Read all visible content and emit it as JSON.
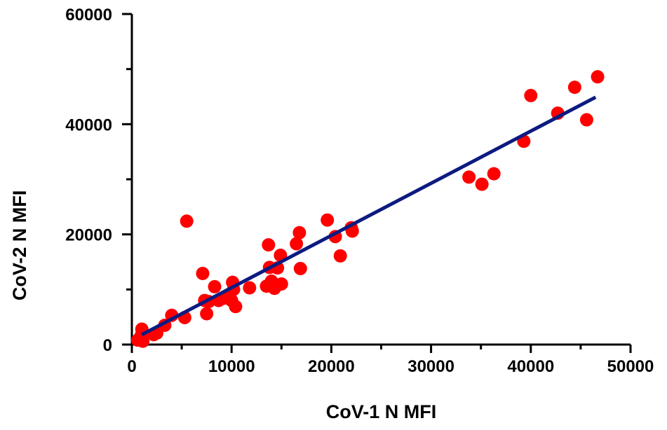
{
  "chart_data": {
    "type": "scatter",
    "xlabel": "CoV-1 N MFI",
    "ylabel": "CoV-2 N  MFI",
    "xlim": [
      0,
      50000
    ],
    "ylim": [
      0,
      60000
    ],
    "x_ticks": [
      0,
      10000,
      20000,
      30000,
      40000,
      50000
    ],
    "x_tick_labels": [
      "0",
      "10000",
      "20000",
      "30000",
      "40000",
      "50000"
    ],
    "y_ticks": [
      0,
      20000,
      40000,
      60000
    ],
    "y_tick_labels": [
      "0",
      "20000",
      "40000",
      "60000"
    ],
    "grid": false,
    "point_color": "#ff0000",
    "line_color": "#0d1a80",
    "points": [
      [
        600,
        800
      ],
      [
        900,
        1500
      ],
      [
        1000,
        2800
      ],
      [
        1100,
        600
      ],
      [
        2200,
        1800
      ],
      [
        2500,
        2100
      ],
      [
        3300,
        3500
      ],
      [
        4000,
        5300
      ],
      [
        5300,
        4900
      ],
      [
        5500,
        22400
      ],
      [
        7100,
        12900
      ],
      [
        7300,
        8000
      ],
      [
        7500,
        5600
      ],
      [
        7700,
        7800
      ],
      [
        8300,
        10500
      ],
      [
        8700,
        8000
      ],
      [
        9200,
        8400
      ],
      [
        9700,
        9000
      ],
      [
        10000,
        8000
      ],
      [
        10100,
        11300
      ],
      [
        10200,
        10000
      ],
      [
        10400,
        6900
      ],
      [
        11800,
        10300
      ],
      [
        13500,
        10600
      ],
      [
        13700,
        18100
      ],
      [
        13800,
        14000
      ],
      [
        14000,
        11500
      ],
      [
        14300,
        10200
      ],
      [
        14600,
        13900
      ],
      [
        14900,
        16200
      ],
      [
        15000,
        11000
      ],
      [
        16500,
        18300
      ],
      [
        16800,
        20300
      ],
      [
        16900,
        13800
      ],
      [
        19600,
        22600
      ],
      [
        20400,
        19600
      ],
      [
        20900,
        16100
      ],
      [
        22000,
        21200
      ],
      [
        22100,
        20600
      ],
      [
        33800,
        30400
      ],
      [
        35100,
        29100
      ],
      [
        36300,
        31000
      ],
      [
        39300,
        36900
      ],
      [
        40000,
        45200
      ],
      [
        42700,
        42000
      ],
      [
        44400,
        46700
      ],
      [
        45600,
        40800
      ],
      [
        46700,
        48600
      ]
    ],
    "fit_line": {
      "x": [
        1000,
        46500
      ],
      "y": [
        1800,
        44900
      ]
    }
  }
}
